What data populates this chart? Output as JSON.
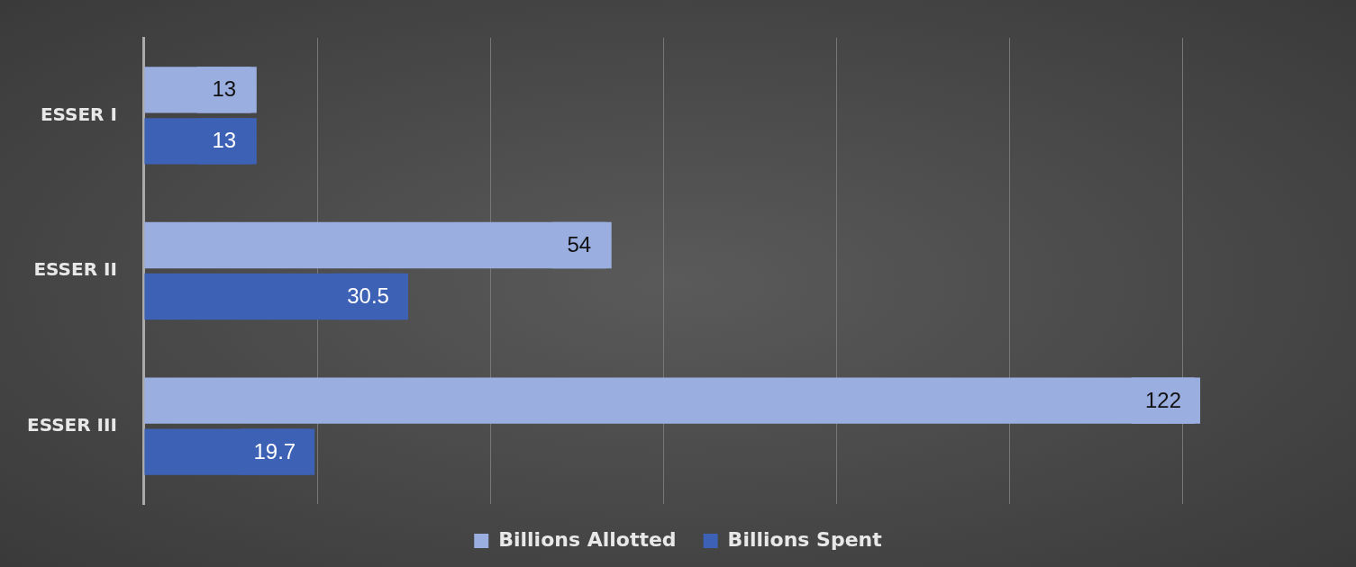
{
  "chart_data": {
    "type": "bar",
    "orientation": "horizontal",
    "categories": [
      "ESSER I",
      "ESSER II",
      "ESSER III"
    ],
    "series": [
      {
        "name": "Billions Allotted",
        "color": "#9aaee0",
        "values": [
          13,
          54,
          122
        ]
      },
      {
        "name": "Billions Spent",
        "color": "#3d62b5",
        "values": [
          13,
          30.5,
          19.7
        ]
      }
    ],
    "tick_labels": "y",
    "grid": "x",
    "legend": "bottom",
    "data_labels": true
  }
}
